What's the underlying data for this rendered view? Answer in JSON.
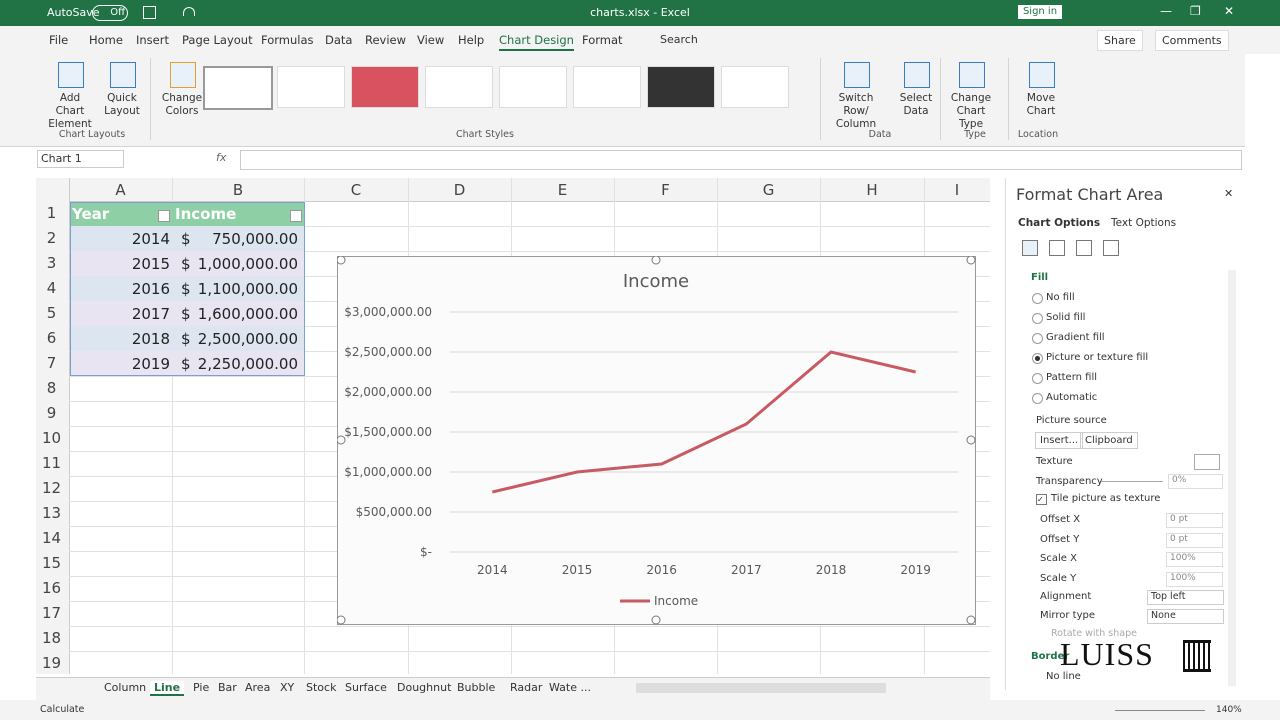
{
  "titlebar": {
    "autosave": "AutoSave",
    "toggle": "Off",
    "filename": "charts.xlsx - Excel",
    "signin": "Sign in"
  },
  "tabs": [
    "File",
    "Home",
    "Insert",
    "Page Layout",
    "Formulas",
    "Data",
    "Review",
    "View",
    "Help",
    "Chart Design",
    "Format"
  ],
  "active_tab": 9,
  "search": "Search",
  "share": "Share",
  "comments": "Comments",
  "ribbon": {
    "buttons": [
      "Add Chart Element",
      "Quick Layout",
      "Change Colors",
      "Switch Row/ Column",
      "Select Data",
      "Change Chart Type",
      "Move Chart"
    ],
    "groups": [
      "Chart Layouts",
      "Chart Styles",
      "Data",
      "Type",
      "Location"
    ]
  },
  "formula_bar": {
    "name_box": "Chart 1",
    "fx": "fx"
  },
  "columns": [
    "A",
    "B",
    "C",
    "D",
    "E",
    "F",
    "G",
    "H",
    "I"
  ],
  "row_numbers": [
    1,
    2,
    3,
    4,
    5,
    6,
    7,
    8,
    9,
    10,
    11,
    12,
    13,
    14,
    15,
    16,
    17,
    18,
    19
  ],
  "table": {
    "header": [
      "Year",
      "Income"
    ],
    "currency": "$",
    "rows": [
      [
        2014,
        "750,000.00"
      ],
      [
        2015,
        "1,000,000.00"
      ],
      [
        2016,
        "1,100,000.00"
      ],
      [
        2017,
        "1,600,000.00"
      ],
      [
        2018,
        "2,500,000.00"
      ],
      [
        2019,
        "2,250,000.00"
      ]
    ]
  },
  "chart_data": {
    "type": "line",
    "title": "Income",
    "categories": [
      "2014",
      "2015",
      "2016",
      "2017",
      "2018",
      "2019"
    ],
    "series": [
      {
        "name": "Income",
        "color": "#c85a64",
        "values": [
          750000,
          1000000,
          1100000,
          1600000,
          2500000,
          2250000
        ]
      }
    ],
    "ylim": [
      0,
      3000000
    ],
    "yticks": [
      {
        "value": 0,
        "label": "$-"
      },
      {
        "value": 500000,
        "label": "$500,000.00"
      },
      {
        "value": 1000000,
        "label": "$1,000,000.00"
      },
      {
        "value": 1500000,
        "label": "$1,500,000.00"
      },
      {
        "value": 2000000,
        "label": "$2,000,000.00"
      },
      {
        "value": 2500000,
        "label": "$2,500,000.00"
      },
      {
        "value": 3000000,
        "label": "$3,000,000.00"
      }
    ],
    "grid": true,
    "legend": "bottom"
  },
  "sheet_tabs": [
    "Column",
    "Line",
    "Pie",
    "Bar",
    "Area",
    "XY",
    "Stock",
    "Surface",
    "Doughnut",
    "Bubble",
    "Radar",
    "Wate ..."
  ],
  "active_sheet": 1,
  "panel": {
    "title": "Format Chart Area",
    "tabs": [
      "Chart Options",
      "Text Options"
    ],
    "fill": "Fill",
    "fill_options": [
      "No fill",
      "Solid fill",
      "Gradient fill",
      "Picture or texture fill",
      "Pattern fill",
      "Automatic"
    ],
    "selected_option": 3,
    "picture_source": "Picture source",
    "source_buttons": [
      "Insert...",
      "Clipboard"
    ],
    "texture": "Texture",
    "transparency": {
      "label": "Transparency",
      "value": "0%"
    },
    "tile": "Tile picture as texture",
    "fields": [
      [
        "Offset X",
        "0 pt"
      ],
      [
        "Offset Y",
        "0 pt"
      ],
      [
        "Scale X",
        "100%"
      ],
      [
        "Scale Y",
        "100%"
      ]
    ],
    "dropdowns": [
      [
        "Alignment",
        "Top left"
      ],
      [
        "Mirror type",
        "None"
      ]
    ],
    "rotate": "Rotate with shape",
    "border": "Border",
    "no_line": "No line"
  },
  "watermark": "LUISS",
  "status": {
    "left": "Calculate",
    "zoom": "140%"
  }
}
